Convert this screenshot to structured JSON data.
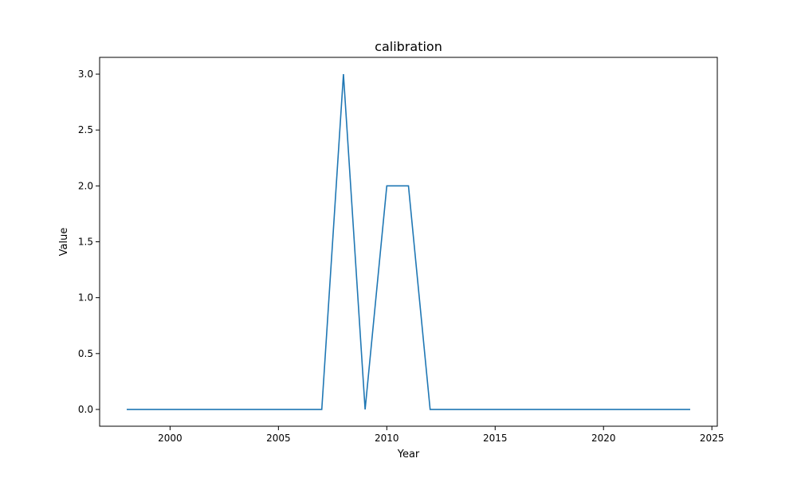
{
  "chart_data": {
    "type": "line",
    "title": "calibration",
    "xlabel": "Year",
    "ylabel": "Value",
    "xlim": [
      1996.75,
      2025.25
    ],
    "ylim": [
      -0.15,
      3.15
    ],
    "x_ticks": [
      2000,
      2005,
      2010,
      2015,
      2020,
      2025
    ],
    "y_ticks": [
      0.0,
      0.5,
      1.0,
      1.5,
      2.0,
      2.5,
      3.0
    ],
    "x_tick_labels": [
      "2000",
      "2005",
      "2010",
      "2015",
      "2020",
      "2025"
    ],
    "y_tick_labels": [
      "0.0",
      "0.5",
      "1.0",
      "1.5",
      "2.0",
      "2.5",
      "3.0"
    ],
    "grid": false,
    "legend": "none",
    "series": [
      {
        "color": "#1f77b4",
        "x": [
          1998,
          1999,
          2000,
          2001,
          2002,
          2003,
          2004,
          2005,
          2006,
          2007,
          2008,
          2009,
          2010,
          2011,
          2012,
          2013,
          2014,
          2015,
          2016,
          2017,
          2018,
          2019,
          2020,
          2021,
          2022,
          2023,
          2024
        ],
        "y": [
          0,
          0,
          0,
          0,
          0,
          0,
          0,
          0,
          0,
          0,
          3,
          0,
          2,
          2,
          0,
          0,
          0,
          0,
          0,
          0,
          0,
          0,
          0,
          0,
          0,
          0,
          0
        ]
      }
    ]
  }
}
